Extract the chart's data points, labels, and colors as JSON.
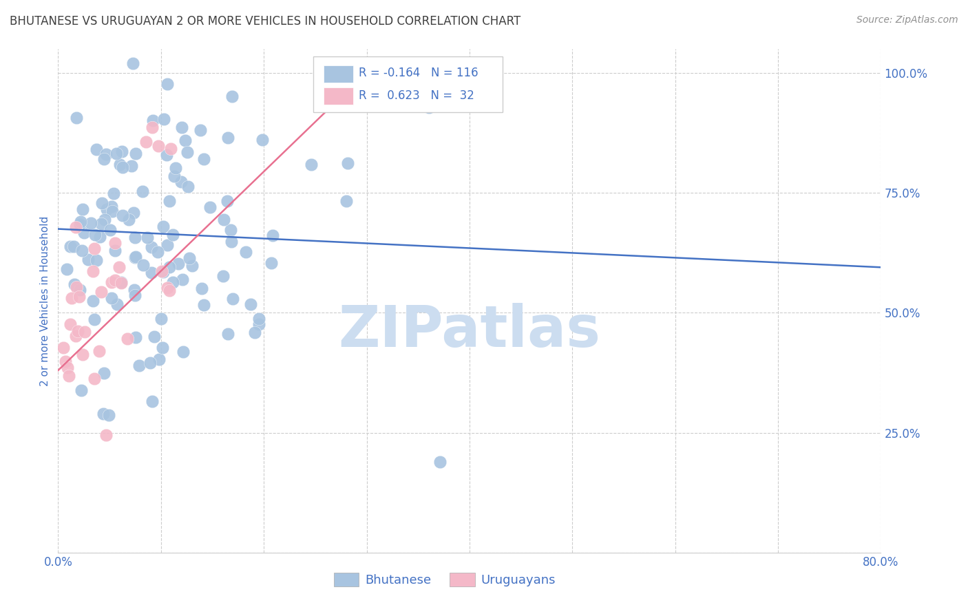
{
  "title": "BHUTANESE VS URUGUAYAN 2 OR MORE VEHICLES IN HOUSEHOLD CORRELATION CHART",
  "source": "Source: ZipAtlas.com",
  "ylabel": "2 or more Vehicles in Household",
  "xmin": 0.0,
  "xmax": 0.8,
  "ymin": 0.0,
  "ymax": 1.05,
  "xticks": [
    0.0,
    0.1,
    0.2,
    0.3,
    0.4,
    0.5,
    0.6,
    0.7,
    0.8
  ],
  "xticklabels": [
    "0.0%",
    "",
    "",
    "",
    "",
    "",
    "",
    "",
    "80.0%"
  ],
  "yticks": [
    0.0,
    0.25,
    0.5,
    0.75,
    1.0
  ],
  "yticklabels_right": [
    "",
    "25.0%",
    "50.0%",
    "75.0%",
    "100.0%"
  ],
  "bhutanese_R": -0.164,
  "bhutanese_N": 116,
  "uruguayan_R": 0.623,
  "uruguayan_N": 32,
  "blue_scatter_color": "#a8c4e0",
  "blue_line_color": "#4472c4",
  "pink_scatter_color": "#f4b8c8",
  "pink_line_color": "#e87090",
  "legend_blue_label": "Bhutanese",
  "legend_pink_label": "Uruguayans",
  "title_color": "#404040",
  "source_color": "#909090",
  "axis_label_color": "#4472c4",
  "tick_label_color": "#4472c4",
  "watermark_text": "ZIPatlas",
  "watermark_color": "#ccddf0",
  "grid_color": "#cccccc",
  "grid_style": "--",
  "blue_line_x0": 0.0,
  "blue_line_x1": 0.8,
  "blue_line_y0": 0.675,
  "blue_line_y1": 0.595,
  "pink_line_x0": 0.0,
  "pink_line_x1": 0.275,
  "pink_line_y0": 0.38,
  "pink_line_y1": 0.95
}
